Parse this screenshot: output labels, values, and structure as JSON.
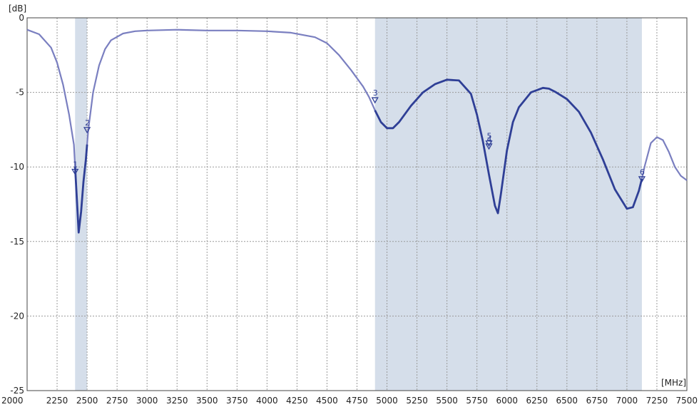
{
  "chart_data": {
    "type": "line",
    "title": "",
    "xlabel": "",
    "ylabel": "",
    "x_unit": "[MHz]",
    "y_unit": "[dB]",
    "xlim": [
      2000,
      7500
    ],
    "ylim": [
      -25,
      0
    ],
    "x_ticks": [
      2000,
      2250,
      2500,
      2750,
      3000,
      3250,
      3500,
      3750,
      4000,
      4250,
      4500,
      4750,
      5000,
      5250,
      5500,
      5750,
      6000,
      6250,
      6500,
      6750,
      7000,
      7250,
      7500
    ],
    "y_ticks": [
      0,
      -5,
      -10,
      -15,
      -20,
      -25
    ],
    "grid": true,
    "bands": [
      {
        "from": 2400,
        "to": 2500
      },
      {
        "from": 4900,
        "to": 7125
      }
    ],
    "colors": {
      "in_band_line": "#2f3f96",
      "out_band_line": "#7a7fc0",
      "band_fill": "#d5deea",
      "grid": "#9a9a9a"
    },
    "series": [
      {
        "x": [
          2000,
          2100,
          2200,
          2250,
          2300,
          2350,
          2390,
          2410,
          2430,
          2450,
          2470,
          2490,
          2510,
          2550,
          2600,
          2650,
          2700,
          2800,
          2900,
          3000,
          3250,
          3500,
          3750,
          4000,
          4200,
          4400,
          4500,
          4600,
          4700,
          4800,
          4850,
          4900,
          4950,
          5000,
          5050,
          5100,
          5200,
          5300,
          5400,
          5500,
          5600,
          5700,
          5750,
          5800,
          5850,
          5900,
          5925,
          5950,
          6000,
          6050,
          6100,
          6200,
          6300,
          6350,
          6400,
          6500,
          6600,
          6700,
          6800,
          6900,
          7000,
          7050,
          7100,
          7125,
          7150,
          7200,
          7250,
          7300,
          7350,
          7400,
          7450,
          7500
        ],
        "y": [
          -0.8,
          -1.1,
          -2.0,
          -3.0,
          -4.5,
          -6.5,
          -8.5,
          -11.5,
          -14.4,
          -13.0,
          -11.0,
          -9.5,
          -7.5,
          -5.0,
          -3.2,
          -2.1,
          -1.5,
          -1.05,
          -0.9,
          -0.85,
          -0.8,
          -0.85,
          -0.85,
          -0.9,
          -1.0,
          -1.3,
          -1.7,
          -2.5,
          -3.5,
          -4.6,
          -5.3,
          -6.2,
          -7.0,
          -7.4,
          -7.4,
          -7.0,
          -5.9,
          -5.0,
          -4.45,
          -4.15,
          -4.2,
          -5.1,
          -6.5,
          -8.3,
          -10.5,
          -12.6,
          -13.1,
          -11.8,
          -8.9,
          -7.0,
          -6.0,
          -5.0,
          -4.7,
          -4.75,
          -4.95,
          -5.45,
          -6.3,
          -7.7,
          -9.5,
          -11.5,
          -12.8,
          -12.7,
          -11.6,
          -10.8,
          -9.9,
          -8.4,
          -8.0,
          -8.2,
          -9.0,
          -10.0,
          -10.6,
          -10.9
        ]
      }
    ],
    "markers": [
      {
        "label": "1",
        "x": 2400,
        "y": -10.3
      },
      {
        "label": "2",
        "x": 2500,
        "y": -7.5
      },
      {
        "label": "3",
        "x": 4900,
        "y": -5.5
      },
      {
        "label": "4",
        "x": 5850,
        "y": -8.6
      },
      {
        "label": "5",
        "x": 5850,
        "y": -8.4
      },
      {
        "label": "6",
        "x": 7125,
        "y": -10.8
      }
    ]
  }
}
